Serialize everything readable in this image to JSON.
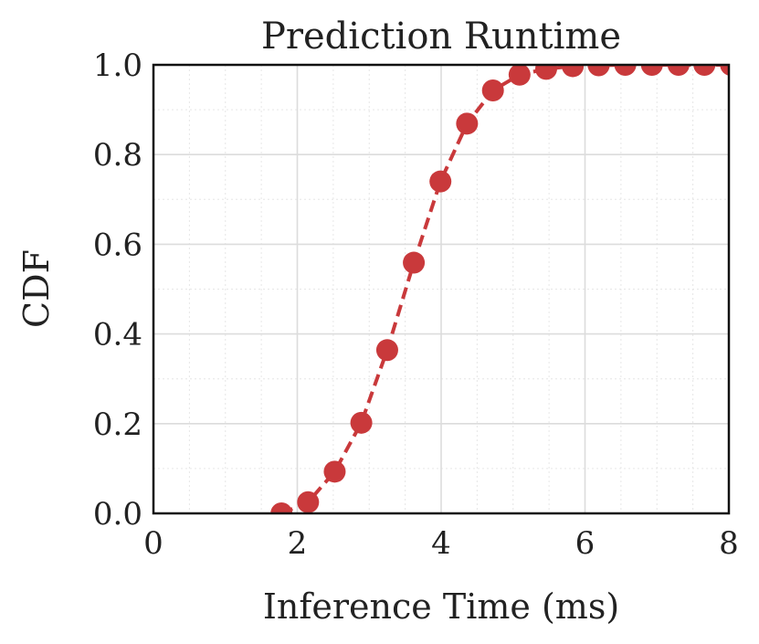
{
  "chart_data": {
    "type": "line",
    "title": "Prediction Runtime",
    "xlabel": "Inference Time (ms)",
    "ylabel": "CDF",
    "xlim": [
      0,
      8
    ],
    "ylim": [
      0,
      1
    ],
    "x_ticks": [
      0,
      2,
      4,
      6,
      8
    ],
    "y_ticks": [
      0.0,
      0.2,
      0.4,
      0.6,
      0.8,
      1.0
    ],
    "x_tick_labels": [
      "0",
      "2",
      "4",
      "6",
      "8"
    ],
    "y_tick_labels": [
      "0.0",
      "0.2",
      "0.4",
      "0.6",
      "0.8",
      "1.0"
    ],
    "grid": true,
    "minor_grid": true,
    "legend": "none",
    "series": [
      {
        "color": "#c9393b",
        "line_style": "dashed",
        "marker": "circle",
        "x": [
          1.78,
          2.15,
          2.52,
          2.89,
          3.25,
          3.62,
          3.99,
          4.36,
          4.72,
          5.09,
          5.46,
          5.83,
          6.19,
          6.56,
          6.93,
          7.3,
          7.66,
          8.03
        ],
        "y": [
          0.0,
          0.025,
          0.093,
          0.202,
          0.364,
          0.559,
          0.74,
          0.869,
          0.943,
          0.978,
          0.991,
          0.997,
          0.999,
          1.0,
          1.0,
          1.0,
          1.0,
          1.0
        ]
      }
    ]
  }
}
